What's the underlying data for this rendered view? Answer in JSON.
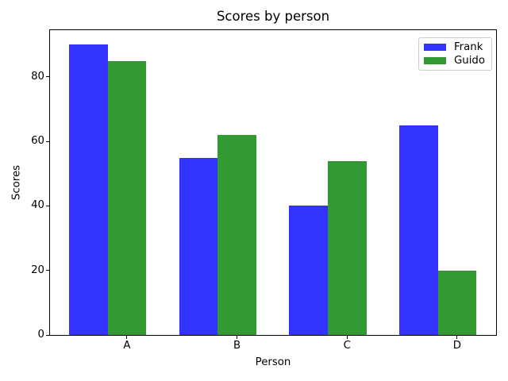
{
  "chart_data": {
    "type": "bar",
    "title": "Scores by person",
    "xlabel": "Person",
    "ylabel": "Scores",
    "categories": [
      "A",
      "B",
      "C",
      "D"
    ],
    "series": [
      {
        "name": "Frank",
        "color": "#3333ff",
        "values": [
          90,
          55,
          40,
          65
        ]
      },
      {
        "name": "Guido",
        "color": "#339933",
        "values": [
          85,
          62,
          54,
          20
        ]
      }
    ],
    "ylim": [
      0,
      94.5
    ],
    "yticks": [
      0,
      20,
      40,
      60,
      80
    ],
    "grid": false,
    "legend_position": "upper right",
    "bar_group_layout": "grouped"
  },
  "colors": {
    "axes": "#000000",
    "text": "#000000",
    "legend_border": "#cccccc",
    "background": "#ffffff"
  }
}
